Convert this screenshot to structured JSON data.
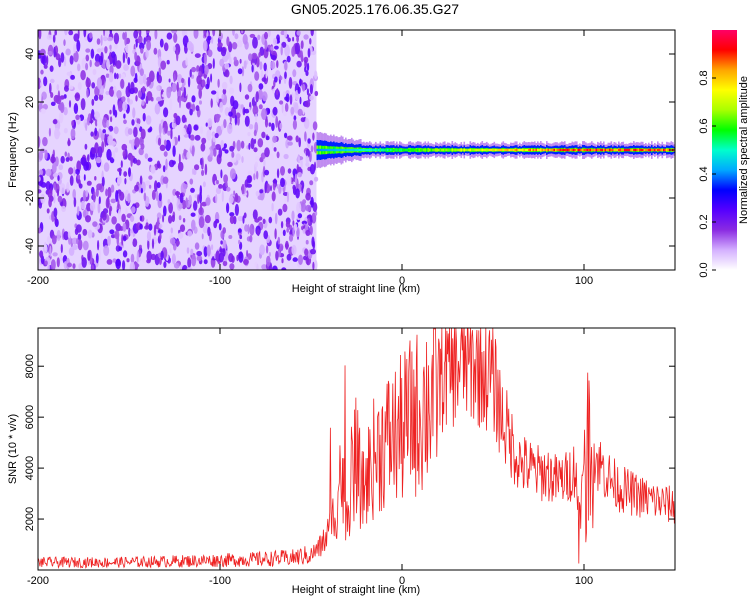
{
  "title": "GN05.2025.176.06.35.G27",
  "chart_data": [
    {
      "type": "heatmap",
      "title": "",
      "xlabel": "Height of straight line (km)",
      "ylabel": "Frequency (Hz)",
      "xlim": [
        -200,
        150
      ],
      "ylim": [
        -50,
        50
      ],
      "xticks": [
        -200,
        -100,
        0,
        100
      ],
      "yticks": [
        -40,
        -20,
        0,
        20,
        40
      ],
      "colorbar": {
        "label": "Normalized spectral amplitude",
        "range": [
          0,
          1
        ],
        "ticks": [
          "0.0",
          "0.2",
          "0.4",
          "0.6",
          "0.8"
        ],
        "colors": [
          "#ffffff",
          "#d4b0ff",
          "#8a2be2",
          "#5500ff",
          "#0000ff",
          "#00aaff",
          "#00ffcc",
          "#00ff00",
          "#aaff00",
          "#ffff00",
          "#ffa500",
          "#ff0000",
          "#ff0066"
        ]
      },
      "regions": [
        {
          "x_range": [
            -200,
            -47
          ],
          "freq_range": [
            -50,
            50
          ],
          "description_level": 0.12
        },
        {
          "x_range": [
            -47,
            150
          ],
          "freq_center": 0,
          "amplitude": [
            0.4,
            0.95
          ]
        }
      ]
    },
    {
      "type": "line",
      "title": "",
      "xlabel": "Height of straight line (km)",
      "ylabel": "SNR (10 * v/v)",
      "xlim": [
        -200,
        150
      ],
      "ylim": [
        0,
        9500
      ],
      "xticks": [
        -200,
        -100,
        0,
        100
      ],
      "yticks": [
        2000,
        4000,
        6000,
        8000
      ],
      "line_color": "#ee2222",
      "series": [
        {
          "x": [
            -200,
            -180,
            -160,
            -140,
            -120,
            -100,
            -80,
            -60,
            -50,
            -45,
            -40,
            -36,
            -34,
            -32,
            -30,
            -28,
            -25,
            -22,
            -20,
            -15,
            -10,
            -5,
            0,
            5,
            10,
            15,
            20,
            25,
            30,
            35,
            40,
            45,
            50,
            55,
            60,
            65,
            70,
            75,
            80,
            85,
            90,
            95,
            98,
            100,
            102,
            105,
            110,
            115,
            120,
            130,
            140,
            150
          ],
          "y": [
            300,
            300,
            300,
            320,
            350,
            380,
            420,
            480,
            600,
            900,
            1500,
            2500,
            4000,
            3000,
            2000,
            3500,
            4500,
            3000,
            3500,
            4500,
            5000,
            5200,
            5500,
            6000,
            6200,
            6800,
            7500,
            7800,
            8000,
            8200,
            8000,
            7800,
            7500,
            6000,
            5000,
            4200,
            4000,
            3800,
            3800,
            3500,
            3600,
            4000,
            2000,
            5000,
            6000,
            4500,
            4000,
            3500,
            3200,
            2900,
            2700,
            2500
          ]
        }
      ]
    }
  ]
}
